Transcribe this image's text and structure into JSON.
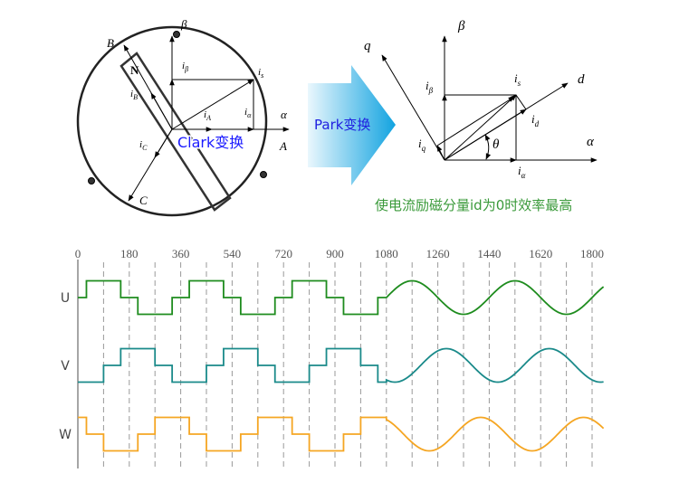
{
  "clark": {
    "labels": {
      "beta": "β",
      "alpha": "α",
      "A": "A",
      "B": "B",
      "C": "C",
      "N": "N",
      "i_beta": "i",
      "i_beta_sub": "β",
      "i_s": "i",
      "i_s_sub": "s",
      "i_A": "i",
      "i_A_sub": "A",
      "i_alpha": "i",
      "i_alpha_sub": "α",
      "i_B": "i",
      "i_B_sub": "B",
      "i_C": "i",
      "i_C_sub": "C"
    },
    "title": "Clark变换",
    "title_color": "#1a1aff"
  },
  "park_arrow": {
    "label": "Park变换",
    "color_start": "#eaf7fd",
    "color_end": "#12a3e0",
    "text_color": "#2020e0"
  },
  "park": {
    "labels": {
      "beta": "β",
      "alpha": "α",
      "d": "d",
      "q": "q",
      "theta": "θ",
      "i_beta": "i",
      "i_beta_sub": "β",
      "i_s": "i",
      "i_s_sub": "s",
      "i_d": "i",
      "i_d_sub": "d",
      "i_q": "i",
      "i_q_sub": "q",
      "i_alpha": "i",
      "i_alpha_sub": "α"
    },
    "note": "使电流励磁分量id为0时效率最高",
    "note_color": "#3a9a3a"
  },
  "chart_data": {
    "type": "line",
    "x_ticks": [
      "0",
      "180",
      "360",
      "540",
      "720",
      "900",
      "1080",
      "1260",
      "1440",
      "1620",
      "1800"
    ],
    "x_tick_values": [
      0,
      180,
      360,
      540,
      720,
      900,
      1080,
      1260,
      1440,
      1620,
      1800
    ],
    "grid_step": 90,
    "grid": "dashed vertical",
    "xlim": [
      0,
      1840
    ],
    "sine_start": 1080,
    "series": [
      {
        "name": "U",
        "color": "#1e8c1e",
        "sine_phase": 0,
        "steps": [
          [
            0,
            0
          ],
          [
            30,
            1
          ],
          [
            150,
            0
          ],
          [
            210,
            -1
          ],
          [
            330,
            0
          ],
          [
            390,
            1
          ],
          [
            510,
            0
          ],
          [
            570,
            -1
          ],
          [
            690,
            0
          ],
          [
            750,
            1
          ],
          [
            870,
            0
          ],
          [
            930,
            -1
          ],
          [
            1050,
            0
          ]
        ]
      },
      {
        "name": "V",
        "color": "#1a8a8a",
        "sine_phase": -120,
        "steps": [
          [
            0,
            -1
          ],
          [
            90,
            0
          ],
          [
            150,
            1
          ],
          [
            270,
            0
          ],
          [
            330,
            -1
          ],
          [
            450,
            0
          ],
          [
            510,
            1
          ],
          [
            630,
            0
          ],
          [
            690,
            -1
          ],
          [
            810,
            0
          ],
          [
            870,
            1
          ],
          [
            990,
            0
          ],
          [
            1050,
            -1
          ]
        ]
      },
      {
        "name": "W",
        "color": "#f5a623",
        "sine_phase": 120,
        "steps": [
          [
            0,
            1
          ],
          [
            30,
            0
          ],
          [
            90,
            -1
          ],
          [
            210,
            0
          ],
          [
            270,
            1
          ],
          [
            390,
            0
          ],
          [
            450,
            -1
          ],
          [
            570,
            0
          ],
          [
            630,
            1
          ],
          [
            750,
            0
          ],
          [
            810,
            -1
          ],
          [
            930,
            0
          ],
          [
            990,
            1
          ]
        ]
      }
    ]
  }
}
